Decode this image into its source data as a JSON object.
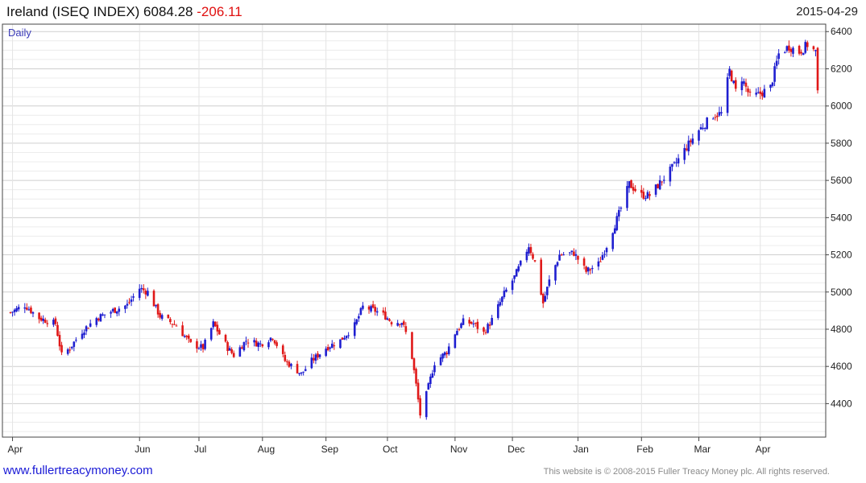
{
  "header": {
    "title": "Ireland (ISEQ INDEX) 6084.28",
    "change": "-206.11",
    "date": "2015-04-29"
  },
  "footer": {
    "website": "www.fullertreacymoney.com",
    "copyright": "This website is © 2008-2015 Fuller Treacy Money plc. All rights reserved."
  },
  "colors": {
    "up": "#1f1fd0",
    "down": "#e01818",
    "grid": "#d6d6d6",
    "frame": "#444444"
  },
  "chart_data": {
    "type": "candlestick",
    "title": "Ireland (ISEQ INDEX) 6084.28 -206.11",
    "interval_label": "Daily",
    "ylim": [
      4220,
      6440
    ],
    "y_ticks": [
      4400,
      4600,
      4800,
      5000,
      5200,
      5400,
      5600,
      5800,
      6000,
      6200,
      6400
    ],
    "y_tick_labels": [
      "4400",
      "4600",
      "4800",
      "5000",
      "5200",
      "5400",
      "5600",
      "5800",
      "6000",
      "6200",
      "6400"
    ],
    "x_range": [
      "2014-03-31",
      "2015-04-29"
    ],
    "x_ticks": [
      {
        "label": "Apr",
        "date": "2014-04-01"
      },
      {
        "label": "Jun",
        "date": "2014-06-02"
      },
      {
        "label": "Jul",
        "date": "2014-07-01"
      },
      {
        "label": "Aug",
        "date": "2014-08-01"
      },
      {
        "label": "Sep",
        "date": "2014-09-01"
      },
      {
        "label": "Oct",
        "date": "2014-10-01"
      },
      {
        "label": "Nov",
        "date": "2014-11-03"
      },
      {
        "label": "Dec",
        "date": "2014-12-01"
      },
      {
        "label": "Jan",
        "date": "2015-01-02"
      },
      {
        "label": "Feb",
        "date": "2015-02-02"
      },
      {
        "label": "Mar",
        "date": "2015-03-02"
      },
      {
        "label": "Apr",
        "date": "2015-04-01"
      }
    ],
    "grid": true,
    "anchors": [
      [
        "2014-03-31",
        4890
      ],
      [
        "2014-04-07",
        4930
      ],
      [
        "2014-04-14",
        4860
      ],
      [
        "2014-04-22",
        4830
      ],
      [
        "2014-04-25",
        4660
      ],
      [
        "2014-04-29",
        4700
      ],
      [
        "2014-05-05",
        4790
      ],
      [
        "2014-05-12",
        4860
      ],
      [
        "2014-05-20",
        4900
      ],
      [
        "2014-05-27",
        4930
      ],
      [
        "2014-06-02",
        5020
      ],
      [
        "2014-06-06",
        5000
      ],
      [
        "2014-06-12",
        4870
      ],
      [
        "2014-06-20",
        4820
      ],
      [
        "2014-06-27",
        4720
      ],
      [
        "2014-07-03",
        4700
      ],
      [
        "2014-07-08",
        4830
      ],
      [
        "2014-07-15",
        4700
      ],
      [
        "2014-07-18",
        4660
      ],
      [
        "2014-07-24",
        4740
      ],
      [
        "2014-07-31",
        4720
      ],
      [
        "2014-08-06",
        4760
      ],
      [
        "2014-08-12",
        4630
      ],
      [
        "2014-08-20",
        4560
      ],
      [
        "2014-08-25",
        4630
      ],
      [
        "2014-09-01",
        4700
      ],
      [
        "2014-09-08",
        4740
      ],
      [
        "2014-09-15",
        4820
      ],
      [
        "2014-09-19",
        4920
      ],
      [
        "2014-09-25",
        4900
      ],
      [
        "2014-09-30",
        4870
      ],
      [
        "2014-10-03",
        4840
      ],
      [
        "2014-10-08",
        4840
      ],
      [
        "2014-10-10",
        4780
      ],
      [
        "2014-10-13",
        4650
      ],
      [
        "2014-10-15",
        4500
      ],
      [
        "2014-10-17",
        4340
      ],
      [
        "2014-10-20",
        4450
      ],
      [
        "2014-10-24",
        4620
      ],
      [
        "2014-10-30",
        4680
      ],
      [
        "2014-11-03",
        4780
      ],
      [
        "2014-11-07",
        4840
      ],
      [
        "2014-11-12",
        4830
      ],
      [
        "2014-11-17",
        4780
      ],
      [
        "2014-11-21",
        4850
      ],
      [
        "2014-11-27",
        4990
      ],
      [
        "2014-12-02",
        5080
      ],
      [
        "2014-12-05",
        5150
      ],
      [
        "2014-12-09",
        5250
      ],
      [
        "2014-12-12",
        5160
      ],
      [
        "2014-12-16",
        4940
      ],
      [
        "2014-12-19",
        5060
      ],
      [
        "2014-12-24",
        5200
      ],
      [
        "2014-12-31",
        5210
      ],
      [
        "2015-01-06",
        5110
      ],
      [
        "2015-01-12",
        5150
      ],
      [
        "2015-01-16",
        5250
      ],
      [
        "2015-01-22",
        5420
      ],
      [
        "2015-01-27",
        5580
      ],
      [
        "2015-02-02",
        5520
      ],
      [
        "2015-02-06",
        5520
      ],
      [
        "2015-02-12",
        5600
      ],
      [
        "2015-02-18",
        5680
      ],
      [
        "2015-02-24",
        5780
      ],
      [
        "2015-03-02",
        5870
      ],
      [
        "2015-03-09",
        5950
      ],
      [
        "2015-03-13",
        5960
      ],
      [
        "2015-03-17",
        6190
      ],
      [
        "2015-03-20",
        6080
      ],
      [
        "2015-03-23",
        6150
      ],
      [
        "2015-03-27",
        6050
      ],
      [
        "2015-03-31",
        6060
      ],
      [
        "2015-04-06",
        6100
      ],
      [
        "2015-04-10",
        6280
      ],
      [
        "2015-04-15",
        6320
      ],
      [
        "2015-04-20",
        6290
      ],
      [
        "2015-04-24",
        6330
      ],
      [
        "2015-04-28",
        6290
      ],
      [
        "2015-04-29",
        6084.28
      ]
    ]
  }
}
